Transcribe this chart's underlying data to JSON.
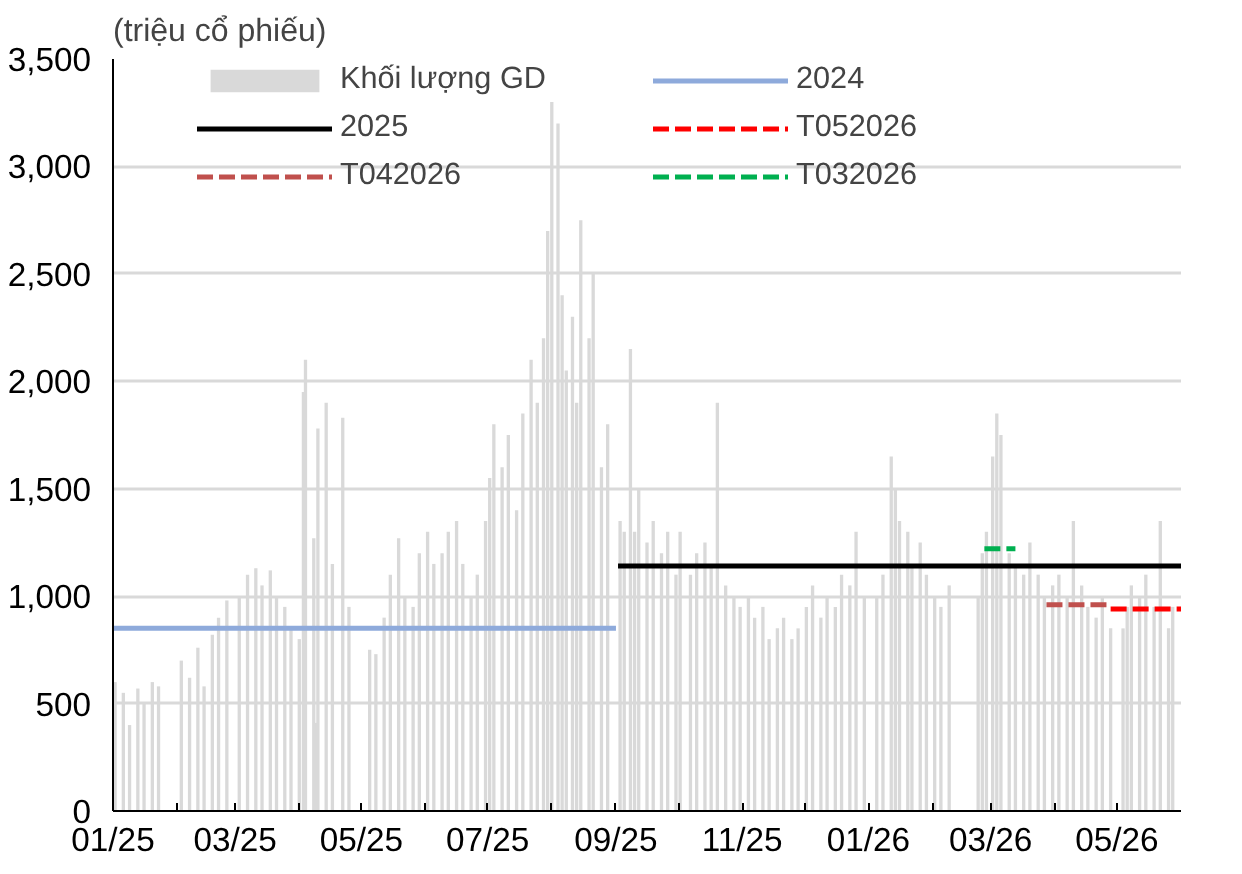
{
  "chart_data": {
    "type": "bar",
    "ylabel": "(triệu cổ phiếu)",
    "ylim": [
      0,
      3500
    ],
    "yticks": [
      {
        "value": 0,
        "label": "0"
      },
      {
        "value": 500,
        "label": "500"
      },
      {
        "value": 1000,
        "label": "1,000"
      },
      {
        "value": 1500,
        "label": "1,500"
      },
      {
        "value": 2000,
        "label": "2,000"
      },
      {
        "value": 2500,
        "label": "2,500"
      },
      {
        "value": 3000,
        "label": "3,000"
      },
      {
        "value": 3500,
        "label": "3,500"
      }
    ],
    "xlim": [
      "2025-01-01",
      "2026-06-01"
    ],
    "xticks": [
      {
        "value": "2025-01-01",
        "label": "01/25"
      },
      {
        "value": "2025-02-01",
        "label": null
      },
      {
        "value": "2025-03-01",
        "label": "03/25"
      },
      {
        "value": "2025-04-01",
        "label": null
      },
      {
        "value": "2025-05-01",
        "label": "05/25"
      },
      {
        "value": "2025-06-01",
        "label": null
      },
      {
        "value": "2025-07-01",
        "label": "07/25"
      },
      {
        "value": "2025-08-01",
        "label": null
      },
      {
        "value": "2025-09-01",
        "label": "09/25"
      },
      {
        "value": "2025-10-01",
        "label": null
      },
      {
        "value": "2025-11-01",
        "label": "11/25"
      },
      {
        "value": "2025-12-01",
        "label": null
      },
      {
        "value": "2026-01-01",
        "label": "01/26"
      },
      {
        "value": "2026-02-01",
        "label": null
      },
      {
        "value": "2026-03-01",
        "label": "03/26"
      },
      {
        "value": "2026-04-01",
        "label": null
      },
      {
        "value": "2026-05-01",
        "label": "05/26"
      }
    ],
    "grid": "y",
    "legend": "top",
    "series": [
      {
        "name": "Khối lượng GD",
        "color": "#d9d9d9",
        "x": [
          "2025-01-02",
          "2025-01-06",
          "2025-01-09",
          "2025-01-13",
          "2025-01-16",
          "2025-01-20",
          "2025-01-23",
          "2025-02-03",
          "2025-02-07",
          "2025-02-11",
          "2025-02-14",
          "2025-02-18",
          "2025-02-21",
          "2025-02-25",
          "2025-03-03",
          "2025-03-07",
          "2025-03-11",
          "2025-03-14",
          "2025-03-18",
          "2025-03-21",
          "2025-03-25",
          "2025-03-28",
          "2025-04-01",
          "2025-04-03",
          "2025-04-04",
          "2025-04-08",
          "2025-04-09",
          "2025-04-10",
          "2025-04-14",
          "2025-04-17",
          "2025-04-22",
          "2025-04-25",
          "2025-05-05",
          "2025-05-08",
          "2025-05-12",
          "2025-05-15",
          "2025-05-19",
          "2025-05-22",
          "2025-05-26",
          "2025-05-29",
          "2025-06-02",
          "2025-06-05",
          "2025-06-09",
          "2025-06-12",
          "2025-06-16",
          "2025-06-19",
          "2025-06-23",
          "2025-06-26",
          "2025-06-30",
          "2025-07-02",
          "2025-07-04",
          "2025-07-08",
          "2025-07-11",
          "2025-07-15",
          "2025-07-18",
          "2025-07-22",
          "2025-07-25",
          "2025-07-28",
          "2025-07-30",
          "2025-08-01",
          "2025-08-04",
          "2025-08-06",
          "2025-08-08",
          "2025-08-11",
          "2025-08-13",
          "2025-08-15",
          "2025-08-19",
          "2025-08-21",
          "2025-08-25",
          "2025-08-28",
          "2025-09-03",
          "2025-09-05",
          "2025-09-08",
          "2025-09-10",
          "2025-09-12",
          "2025-09-16",
          "2025-09-19",
          "2025-09-23",
          "2025-09-26",
          "2025-09-30",
          "2025-10-02",
          "2025-10-07",
          "2025-10-10",
          "2025-10-14",
          "2025-10-17",
          "2025-10-20",
          "2025-10-24",
          "2025-10-28",
          "2025-10-31",
          "2025-11-04",
          "2025-11-07",
          "2025-11-11",
          "2025-11-14",
          "2025-11-18",
          "2025-11-21",
          "2025-11-25",
          "2025-11-28",
          "2025-12-02",
          "2025-12-05",
          "2025-12-09",
          "2025-12-12",
          "2025-12-16",
          "2025-12-19",
          "2025-12-23",
          "2025-12-26",
          "2025-12-30",
          "2026-01-05",
          "2026-01-08",
          "2026-01-12",
          "2026-01-14",
          "2026-01-16",
          "2026-01-20",
          "2026-01-22",
          "2026-01-26",
          "2026-01-29",
          "2026-02-02",
          "2026-02-05",
          "2026-02-09",
          "2026-02-23",
          "2026-02-25",
          "2026-02-27",
          "2026-03-02",
          "2026-03-04",
          "2026-03-06",
          "2026-03-10",
          "2026-03-13",
          "2026-03-17",
          "2026-03-20",
          "2026-03-24",
          "2026-03-27",
          "2026-03-31",
          "2026-04-03",
          "2026-04-07",
          "2026-04-10",
          "2026-04-14",
          "2026-04-17",
          "2026-04-21",
          "2026-04-24",
          "2026-04-28",
          "2026-05-04",
          "2026-05-06",
          "2026-05-08",
          "2026-05-12",
          "2026-05-15",
          "2026-05-19",
          "2026-05-22",
          "2026-05-26",
          "2026-05-28"
        ],
        "values": [
          600,
          550,
          400,
          570,
          500,
          600,
          580,
          700,
          620,
          760,
          580,
          820,
          900,
          980,
          1000,
          1100,
          1130,
          1050,
          1120,
          1000,
          950,
          850,
          800,
          1950,
          2100,
          1270,
          410,
          1780,
          1900,
          1150,
          1830,
          950,
          750,
          730,
          900,
          1100,
          1270,
          1000,
          950,
          1200,
          1300,
          1150,
          1200,
          1300,
          1350,
          1150,
          1000,
          1100,
          1350,
          1550,
          1800,
          1600,
          1750,
          1400,
          1850,
          2100,
          1900,
          2200,
          2700,
          3300,
          3200,
          2400,
          2050,
          2300,
          1900,
          2750,
          2200,
          2500,
          1600,
          1800,
          1350,
          1300,
          2150,
          1300,
          1500,
          1250,
          1350,
          1200,
          1300,
          1100,
          1300,
          1100,
          1200,
          1250,
          1150,
          1900,
          1050,
          1000,
          950,
          1000,
          900,
          950,
          800,
          850,
          900,
          800,
          850,
          950,
          1050,
          900,
          1000,
          950,
          1100,
          1050,
          1300,
          1000,
          1000,
          1100,
          1650,
          1500,
          1350,
          1300,
          1150,
          1250,
          1100,
          1000,
          950,
          1050,
          1000,
          1200,
          1300,
          1650,
          1850,
          1750,
          1200,
          1150,
          1100,
          1250,
          1100,
          1000,
          1050,
          1100,
          1000,
          1350,
          1050,
          950,
          900,
          1000,
          850,
          850,
          950,
          1050,
          1000,
          1100,
          950,
          1350,
          850,
          950
        ]
      },
      {
        "name": "2024",
        "type": "line",
        "color": "#8eaadb",
        "line_style": "solid",
        "x": [
          "2025-01-01",
          "2025-09-01"
        ],
        "values": [
          850,
          850
        ]
      },
      {
        "name": "2025",
        "type": "line",
        "color": "#000000",
        "line_style": "solid",
        "x": [
          "2025-09-02",
          "2026-06-01"
        ],
        "values": [
          1140,
          1140
        ]
      },
      {
        "name": "T052026",
        "type": "line",
        "color": "#ff0000",
        "line_style": "dashed",
        "x": [
          "2026-04-28",
          "2026-06-01"
        ],
        "values": [
          940,
          940
        ]
      },
      {
        "name": "T042026",
        "type": "line",
        "color": "#c0504d",
        "line_style": "dashed",
        "x": [
          "2026-03-28",
          "2026-04-26"
        ],
        "values": [
          960,
          960
        ]
      },
      {
        "name": "T032026",
        "type": "line",
        "color": "#00b050",
        "line_style": "dashed",
        "x": [
          "2026-02-26",
          "2026-03-13"
        ],
        "values": [
          1220,
          1220
        ]
      }
    ]
  }
}
